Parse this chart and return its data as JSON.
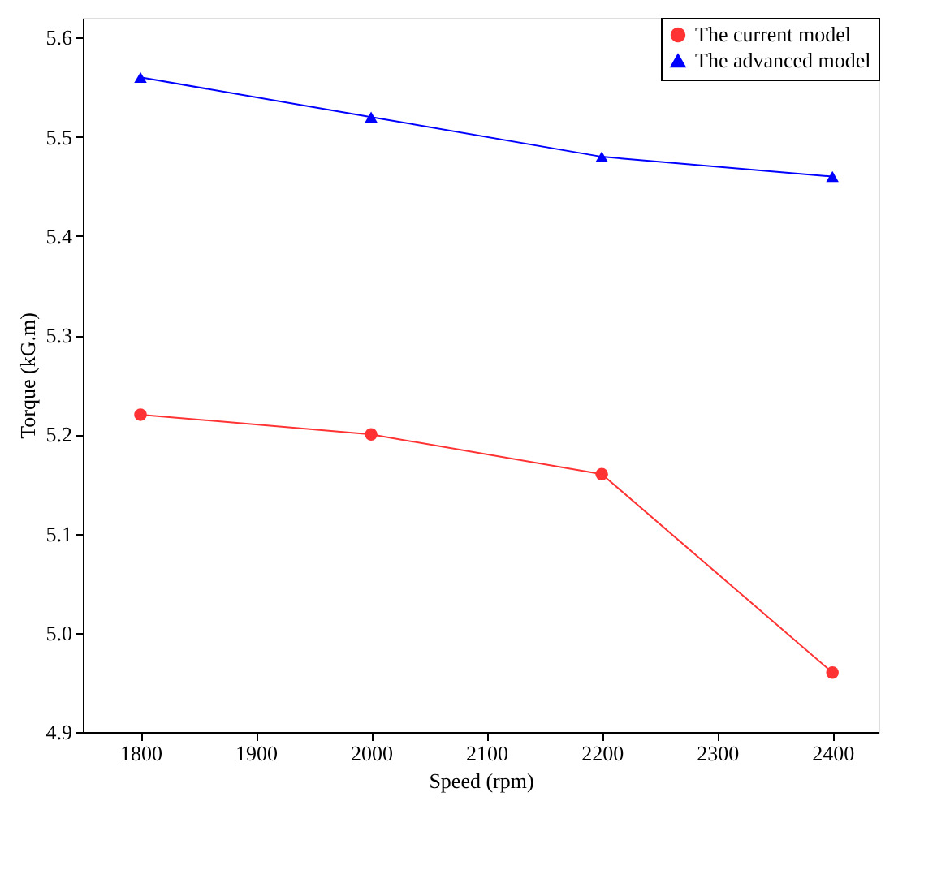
{
  "chart_data": {
    "type": "line",
    "xlabel": "Speed (rpm)",
    "ylabel": "Torque (kG.m)",
    "x": [
      1800,
      2000,
      2200,
      2400
    ],
    "series": [
      {
        "name": "The current model",
        "color": "#ff3333",
        "marker": "circle",
        "values": [
          5.22,
          5.2,
          5.16,
          4.96
        ]
      },
      {
        "name": "The advanced model",
        "color": "#0000ff",
        "marker": "triangle",
        "values": [
          5.56,
          5.52,
          5.48,
          5.46
        ]
      }
    ],
    "xlim": [
      1750,
      2440
    ],
    "xticks": [
      1800,
      1900,
      2000,
      2100,
      2200,
      2300,
      2400
    ],
    "ylim": [
      4.9,
      5.62
    ],
    "yticks": [
      4.9,
      {
        "value": 5.0,
        "label": "5.0"
      },
      5.1,
      5.2,
      5.3,
      5.4,
      5.5,
      5.6
    ],
    "grid": false,
    "legend": "top right",
    "line_style": "solid"
  }
}
